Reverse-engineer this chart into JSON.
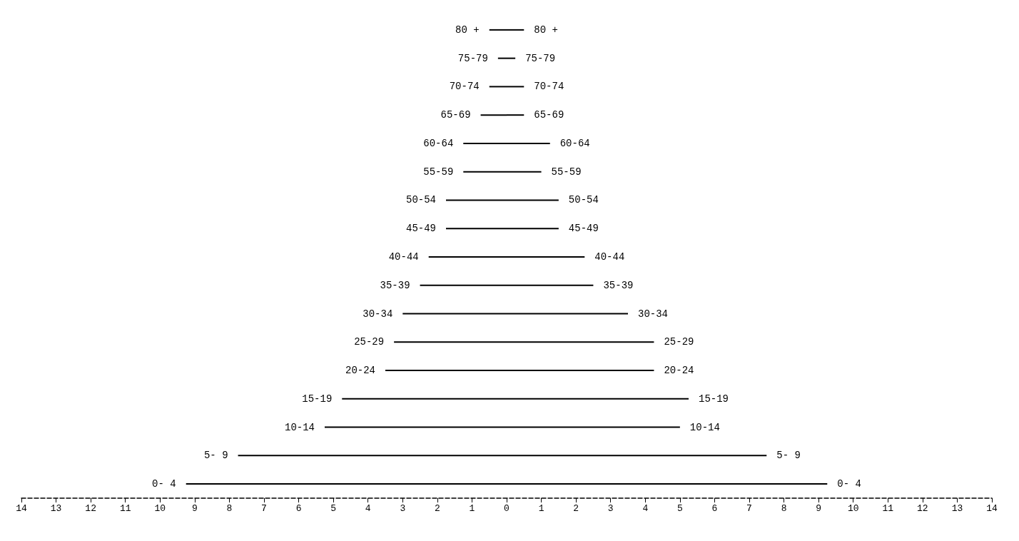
{
  "chart_data": {
    "type": "bar",
    "orientation": "horizontal",
    "categories": [
      "80 +",
      "75-79",
      "70-74",
      "65-69",
      "60-64",
      "55-59",
      "50-54",
      "45-49",
      "40-44",
      "35-39",
      "30-34",
      "25-29",
      "20-24",
      "15-19",
      "10-14",
      "5- 9",
      "0- 4"
    ],
    "series": [
      {
        "color": "#000000",
        "values": [
          -0.5,
          -0.25,
          -0.5,
          -0.75,
          -1.25,
          -1.25,
          -1.75,
          -1.75,
          -2.25,
          -2.5,
          -3.0,
          -3.25,
          -3.5,
          -4.75,
          -5.25,
          -7.75,
          -9.25
        ]
      },
      {
        "color": "#000000",
        "values": [
          0.5,
          0.25,
          0.5,
          0.5,
          1.25,
          1.0,
          1.5,
          1.5,
          2.25,
          2.5,
          3.5,
          4.25,
          4.25,
          5.25,
          5.0,
          7.5,
          9.25
        ]
      }
    ],
    "xlim": [
      -14,
      14
    ],
    "xticks": [
      {
        "value": -14,
        "label": "14"
      },
      {
        "value": -13,
        "label": "13"
      },
      {
        "value": -12,
        "label": "12"
      },
      {
        "value": -11,
        "label": "11"
      },
      {
        "value": -10,
        "label": "10"
      },
      {
        "value": -9,
        "label": "9"
      },
      {
        "value": -8,
        "label": "8"
      },
      {
        "value": -7,
        "label": "7"
      },
      {
        "value": -6,
        "label": "6"
      },
      {
        "value": -5,
        "label": "5"
      },
      {
        "value": -4,
        "label": "4"
      },
      {
        "value": -3,
        "label": "3"
      },
      {
        "value": -2,
        "label": "2"
      },
      {
        "value": -1,
        "label": "1"
      },
      0,
      1,
      2,
      3,
      4,
      5,
      6,
      7,
      8,
      9,
      10,
      11,
      12,
      13,
      14
    ],
    "tick_labels": "x",
    "grid": false
  }
}
